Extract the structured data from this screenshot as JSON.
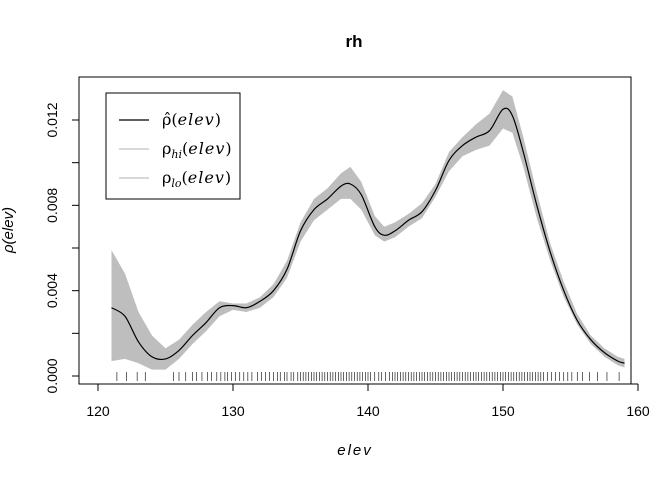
{
  "chart_data": {
    "type": "line",
    "title": "rh",
    "xlabel": "elev",
    "ylabel": "ρ(elev)",
    "xlim": [
      120,
      160
    ],
    "ylim": [
      0,
      0.0135
    ],
    "x_ticks": [
      "120",
      "130",
      "140",
      "150",
      "160"
    ],
    "x_tick_values": [
      120,
      130,
      140,
      150,
      160
    ],
    "y_ticks": [
      "0.000",
      "0.004",
      "0.008",
      "0.012"
    ],
    "y_tick_values": [
      0,
      0.004,
      0.008,
      0.012
    ],
    "legend": {
      "position": "top-left",
      "entries": [
        {
          "symbol": "ρ̂",
          "label": "elev",
          "color": "#000000"
        },
        {
          "symbol": "ρ",
          "sub": "hi",
          "label": "elev",
          "color": "#c0c0c0"
        },
        {
          "symbol": "ρ",
          "sub": "lo",
          "label": "elev",
          "color": "#c0c0c0"
        }
      ]
    },
    "band_color": "#bebebe",
    "line_color": "#000000",
    "series": [
      {
        "name": "ρ̂(elev)",
        "x": [
          121,
          122,
          123,
          124,
          125,
          126,
          127,
          128,
          129,
          130,
          131,
          132,
          133,
          134,
          135,
          136,
          137,
          138,
          138.7,
          139.5,
          140.5,
          141.2,
          142,
          143,
          144,
          145,
          146,
          147,
          148,
          149,
          150,
          150.7,
          151.5,
          152.5,
          153.5,
          154.5,
          155.5,
          156.5,
          157.5,
          158.5,
          159
        ],
        "y": [
          0.0032,
          0.0028,
          0.0016,
          0.0009,
          0.0008,
          0.0012,
          0.0019,
          0.0025,
          0.0032,
          0.0033,
          0.0032,
          0.0035,
          0.004,
          0.005,
          0.0068,
          0.0078,
          0.0083,
          0.0089,
          0.009,
          0.0085,
          0.007,
          0.0066,
          0.0068,
          0.0073,
          0.0077,
          0.0087,
          0.0101,
          0.0108,
          0.0112,
          0.0115,
          0.0125,
          0.0122,
          0.0105,
          0.008,
          0.0058,
          0.004,
          0.0026,
          0.0017,
          0.0011,
          0.0007,
          0.0006
        ]
      },
      {
        "name": "ρhi(elev)",
        "x": [
          121,
          122,
          123,
          124,
          125,
          126,
          127,
          128,
          129,
          130,
          131,
          132,
          133,
          134,
          135,
          136,
          137,
          138,
          138.7,
          139.5,
          140.5,
          141.2,
          142,
          143,
          144,
          145,
          146,
          147,
          148,
          149,
          150,
          150.7,
          151.5,
          152.5,
          153.5,
          154.5,
          155.5,
          156.5,
          157.5,
          158.5,
          159
        ],
        "y": [
          0.0059,
          0.0048,
          0.003,
          0.0019,
          0.0013,
          0.0017,
          0.0024,
          0.003,
          0.0035,
          0.0034,
          0.0034,
          0.0037,
          0.0043,
          0.0054,
          0.0072,
          0.0083,
          0.0088,
          0.0095,
          0.0098,
          0.0091,
          0.0075,
          0.007,
          0.0072,
          0.0076,
          0.0081,
          0.009,
          0.0105,
          0.0112,
          0.0118,
          0.0123,
          0.0134,
          0.0131,
          0.0112,
          0.0086,
          0.0062,
          0.0044,
          0.0029,
          0.0019,
          0.0013,
          0.0009,
          0.0008
        ]
      },
      {
        "name": "ρlo(elev)",
        "x": [
          121,
          122,
          123,
          124,
          125,
          126,
          127,
          128,
          129,
          130,
          131,
          132,
          133,
          134,
          135,
          136,
          137,
          138,
          138.7,
          139.5,
          140.5,
          141.2,
          142,
          143,
          144,
          145,
          146,
          147,
          148,
          149,
          150,
          150.7,
          151.5,
          152.5,
          153.5,
          154.5,
          155.5,
          156.5,
          157.5,
          158.5,
          159
        ],
        "y": [
          0.0007,
          0.0008,
          0.0006,
          0.0003,
          0.0003,
          0.0008,
          0.0015,
          0.0021,
          0.0028,
          0.0031,
          0.003,
          0.0032,
          0.0037,
          0.0046,
          0.0063,
          0.0073,
          0.0078,
          0.0083,
          0.0083,
          0.0078,
          0.0066,
          0.0063,
          0.0065,
          0.007,
          0.0074,
          0.0084,
          0.0096,
          0.0103,
          0.0106,
          0.0108,
          0.0116,
          0.0114,
          0.0098,
          0.0074,
          0.0054,
          0.0037,
          0.0024,
          0.0015,
          0.0009,
          0.0005,
          0.0004
        ]
      }
    ],
    "rug": [
      121.4,
      122.1,
      122.9,
      123.5,
      125.6,
      126.0,
      126.5,
      127.0,
      127.3,
      127.7,
      128.1,
      128.4,
      128.8,
      129.1,
      129.4,
      129.6,
      129.9,
      130.2,
      130.5,
      130.8,
      131.1,
      131.4,
      131.8,
      132.1,
      132.4,
      132.7,
      133.0,
      133.3,
      133.5,
      133.8,
      134.0,
      134.3,
      134.5,
      134.8,
      135.0,
      135.2,
      135.4,
      135.6,
      135.8,
      136.0,
      136.2,
      136.4,
      136.6,
      136.8,
      137.0,
      137.2,
      137.4,
      137.6,
      137.8,
      138.0,
      138.2,
      138.4,
      138.6,
      138.8,
      139.0,
      139.2,
      139.4,
      139.6,
      139.8,
      140.0,
      140.2,
      140.5,
      140.8,
      141.0,
      141.3,
      141.6,
      141.8,
      142.0,
      142.2,
      142.4,
      142.6,
      142.8,
      143.0,
      143.2,
      143.4,
      143.6,
      143.8,
      144.0,
      144.2,
      144.4,
      144.6,
      144.8,
      145.0,
      145.2,
      145.4,
      145.6,
      145.8,
      146.0,
      146.2,
      146.4,
      146.6,
      146.8,
      147.0,
      147.2,
      147.4,
      147.6,
      147.8,
      148.0,
      148.2,
      148.4,
      148.6,
      148.8,
      149.0,
      149.2,
      149.4,
      149.6,
      149.8,
      150.0,
      150.2,
      150.4,
      150.6,
      150.8,
      151.0,
      151.2,
      151.4,
      151.6,
      151.8,
      152.0,
      152.2,
      152.4,
      152.6,
      152.8,
      153.0,
      153.3,
      153.6,
      153.9,
      154.2,
      154.5,
      154.8,
      155.1,
      155.5,
      155.9,
      156.4,
      157.0,
      157.7,
      158.6
    ]
  }
}
